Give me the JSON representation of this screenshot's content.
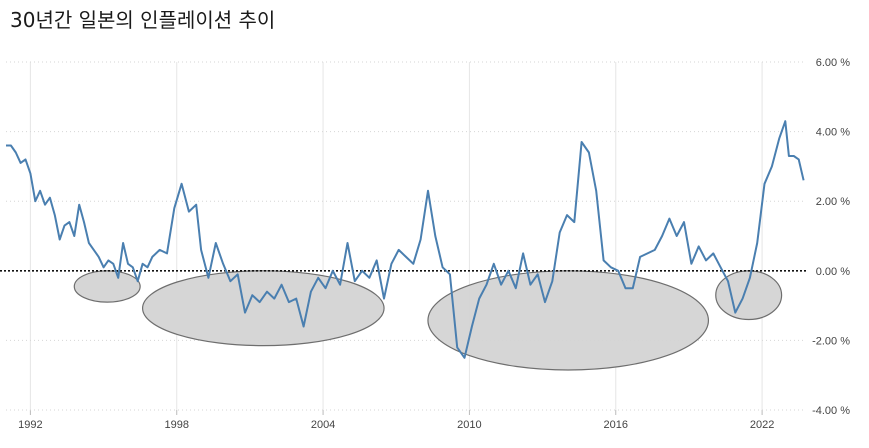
{
  "chart_data": {
    "type": "line",
    "title": "30년간 일본의 인플레이션 추이",
    "xlabel": "",
    "ylabel": "",
    "x_ticks": [
      "1992",
      "1998",
      "2004",
      "2010",
      "2016",
      "2022"
    ],
    "y_ticks": [
      "6.00 %",
      "4.00 %",
      "2.00 %",
      "0.00 %",
      "-2.00 %",
      "-4.00 %"
    ],
    "ylim": [
      -4,
      6
    ],
    "xlim": [
      1991.0,
      2023.8
    ],
    "grid": true,
    "zero_line": "dotted",
    "line_color": "#4a7fb0",
    "highlight_fill": "#d4d4d4",
    "highlights": [
      {
        "from": 1993.8,
        "to": 1996.5,
        "yfrom": -0.9,
        "yto": 0.0
      },
      {
        "from": 1996.6,
        "to": 2006.5,
        "yfrom": -2.15,
        "yto": 0.0
      },
      {
        "from": 2008.3,
        "to": 2019.8,
        "yfrom": -2.85,
        "yto": 0.0
      },
      {
        "from": 2020.1,
        "to": 2022.8,
        "yfrom": -1.4,
        "yto": 0.0
      }
    ],
    "series": [
      {
        "values": [
          [
            1991.0,
            3.6
          ],
          [
            1991.2,
            3.6
          ],
          [
            1991.4,
            3.4
          ],
          [
            1991.6,
            3.1
          ],
          [
            1991.8,
            3.2
          ],
          [
            1992.0,
            2.8
          ],
          [
            1992.2,
            2.0
          ],
          [
            1992.4,
            2.3
          ],
          [
            1992.6,
            1.9
          ],
          [
            1992.8,
            2.1
          ],
          [
            1993.0,
            1.6
          ],
          [
            1993.2,
            0.9
          ],
          [
            1993.4,
            1.3
          ],
          [
            1993.6,
            1.4
          ],
          [
            1993.8,
            1.0
          ],
          [
            1994.0,
            1.9
          ],
          [
            1994.2,
            1.4
          ],
          [
            1994.4,
            0.8
          ],
          [
            1994.6,
            0.6
          ],
          [
            1994.8,
            0.4
          ],
          [
            1995.0,
            0.1
          ],
          [
            1995.2,
            0.3
          ],
          [
            1995.4,
            0.2
          ],
          [
            1995.6,
            -0.2
          ],
          [
            1995.8,
            0.8
          ],
          [
            1996.0,
            0.2
          ],
          [
            1996.2,
            0.1
          ],
          [
            1996.4,
            -0.3
          ],
          [
            1996.6,
            0.2
          ],
          [
            1996.8,
            0.1
          ],
          [
            1997.0,
            0.4
          ],
          [
            1997.3,
            0.6
          ],
          [
            1997.6,
            0.5
          ],
          [
            1997.9,
            1.8
          ],
          [
            1998.2,
            2.5
          ],
          [
            1998.5,
            1.7
          ],
          [
            1998.8,
            1.9
          ],
          [
            1999.0,
            0.6
          ],
          [
            1999.3,
            -0.2
          ],
          [
            1999.6,
            0.8
          ],
          [
            1999.9,
            0.2
          ],
          [
            2000.2,
            -0.3
          ],
          [
            2000.5,
            -0.1
          ],
          [
            2000.8,
            -1.2
          ],
          [
            2001.1,
            -0.7
          ],
          [
            2001.4,
            -0.9
          ],
          [
            2001.7,
            -0.6
          ],
          [
            2002.0,
            -0.8
          ],
          [
            2002.3,
            -0.4
          ],
          [
            2002.6,
            -0.9
          ],
          [
            2002.9,
            -0.8
          ],
          [
            2003.2,
            -1.6
          ],
          [
            2003.5,
            -0.6
          ],
          [
            2003.8,
            -0.2
          ],
          [
            2004.1,
            -0.5
          ],
          [
            2004.4,
            0.0
          ],
          [
            2004.7,
            -0.4
          ],
          [
            2005.0,
            0.8
          ],
          [
            2005.3,
            -0.3
          ],
          [
            2005.6,
            0.0
          ],
          [
            2005.9,
            -0.2
          ],
          [
            2006.2,
            0.3
          ],
          [
            2006.5,
            -0.8
          ],
          [
            2006.8,
            0.2
          ],
          [
            2007.1,
            0.6
          ],
          [
            2007.4,
            0.4
          ],
          [
            2007.7,
            0.2
          ],
          [
            2008.0,
            0.9
          ],
          [
            2008.3,
            2.3
          ],
          [
            2008.6,
            1.0
          ],
          [
            2008.9,
            0.1
          ],
          [
            2009.2,
            -0.1
          ],
          [
            2009.5,
            -2.2
          ],
          [
            2009.8,
            -2.5
          ],
          [
            2010.1,
            -1.6
          ],
          [
            2010.4,
            -0.8
          ],
          [
            2010.7,
            -0.4
          ],
          [
            2011.0,
            0.2
          ],
          [
            2011.3,
            -0.4
          ],
          [
            2011.6,
            0.0
          ],
          [
            2011.9,
            -0.5
          ],
          [
            2012.2,
            0.5
          ],
          [
            2012.5,
            -0.4
          ],
          [
            2012.8,
            -0.1
          ],
          [
            2013.1,
            -0.9
          ],
          [
            2013.4,
            -0.3
          ],
          [
            2013.7,
            1.1
          ],
          [
            2014.0,
            1.6
          ],
          [
            2014.3,
            1.4
          ],
          [
            2014.6,
            3.7
          ],
          [
            2014.9,
            3.4
          ],
          [
            2015.2,
            2.3
          ],
          [
            2015.5,
            0.3
          ],
          [
            2015.8,
            0.1
          ],
          [
            2016.1,
            0.0
          ],
          [
            2016.4,
            -0.5
          ],
          [
            2016.7,
            -0.5
          ],
          [
            2017.0,
            0.4
          ],
          [
            2017.3,
            0.5
          ],
          [
            2017.6,
            0.6
          ],
          [
            2017.9,
            1.0
          ],
          [
            2018.2,
            1.5
          ],
          [
            2018.5,
            1.0
          ],
          [
            2018.8,
            1.4
          ],
          [
            2019.1,
            0.2
          ],
          [
            2019.4,
            0.7
          ],
          [
            2019.7,
            0.3
          ],
          [
            2020.0,
            0.5
          ],
          [
            2020.3,
            0.1
          ],
          [
            2020.6,
            -0.3
          ],
          [
            2020.9,
            -1.2
          ],
          [
            2021.2,
            -0.8
          ],
          [
            2021.5,
            -0.2
          ],
          [
            2021.8,
            0.8
          ],
          [
            2022.1,
            2.5
          ],
          [
            2022.4,
            3.0
          ],
          [
            2022.7,
            3.8
          ],
          [
            2022.95,
            4.3
          ],
          [
            2023.1,
            3.3
          ],
          [
            2023.3,
            3.3
          ],
          [
            2023.5,
            3.2
          ],
          [
            2023.7,
            2.6
          ]
        ]
      }
    ]
  }
}
